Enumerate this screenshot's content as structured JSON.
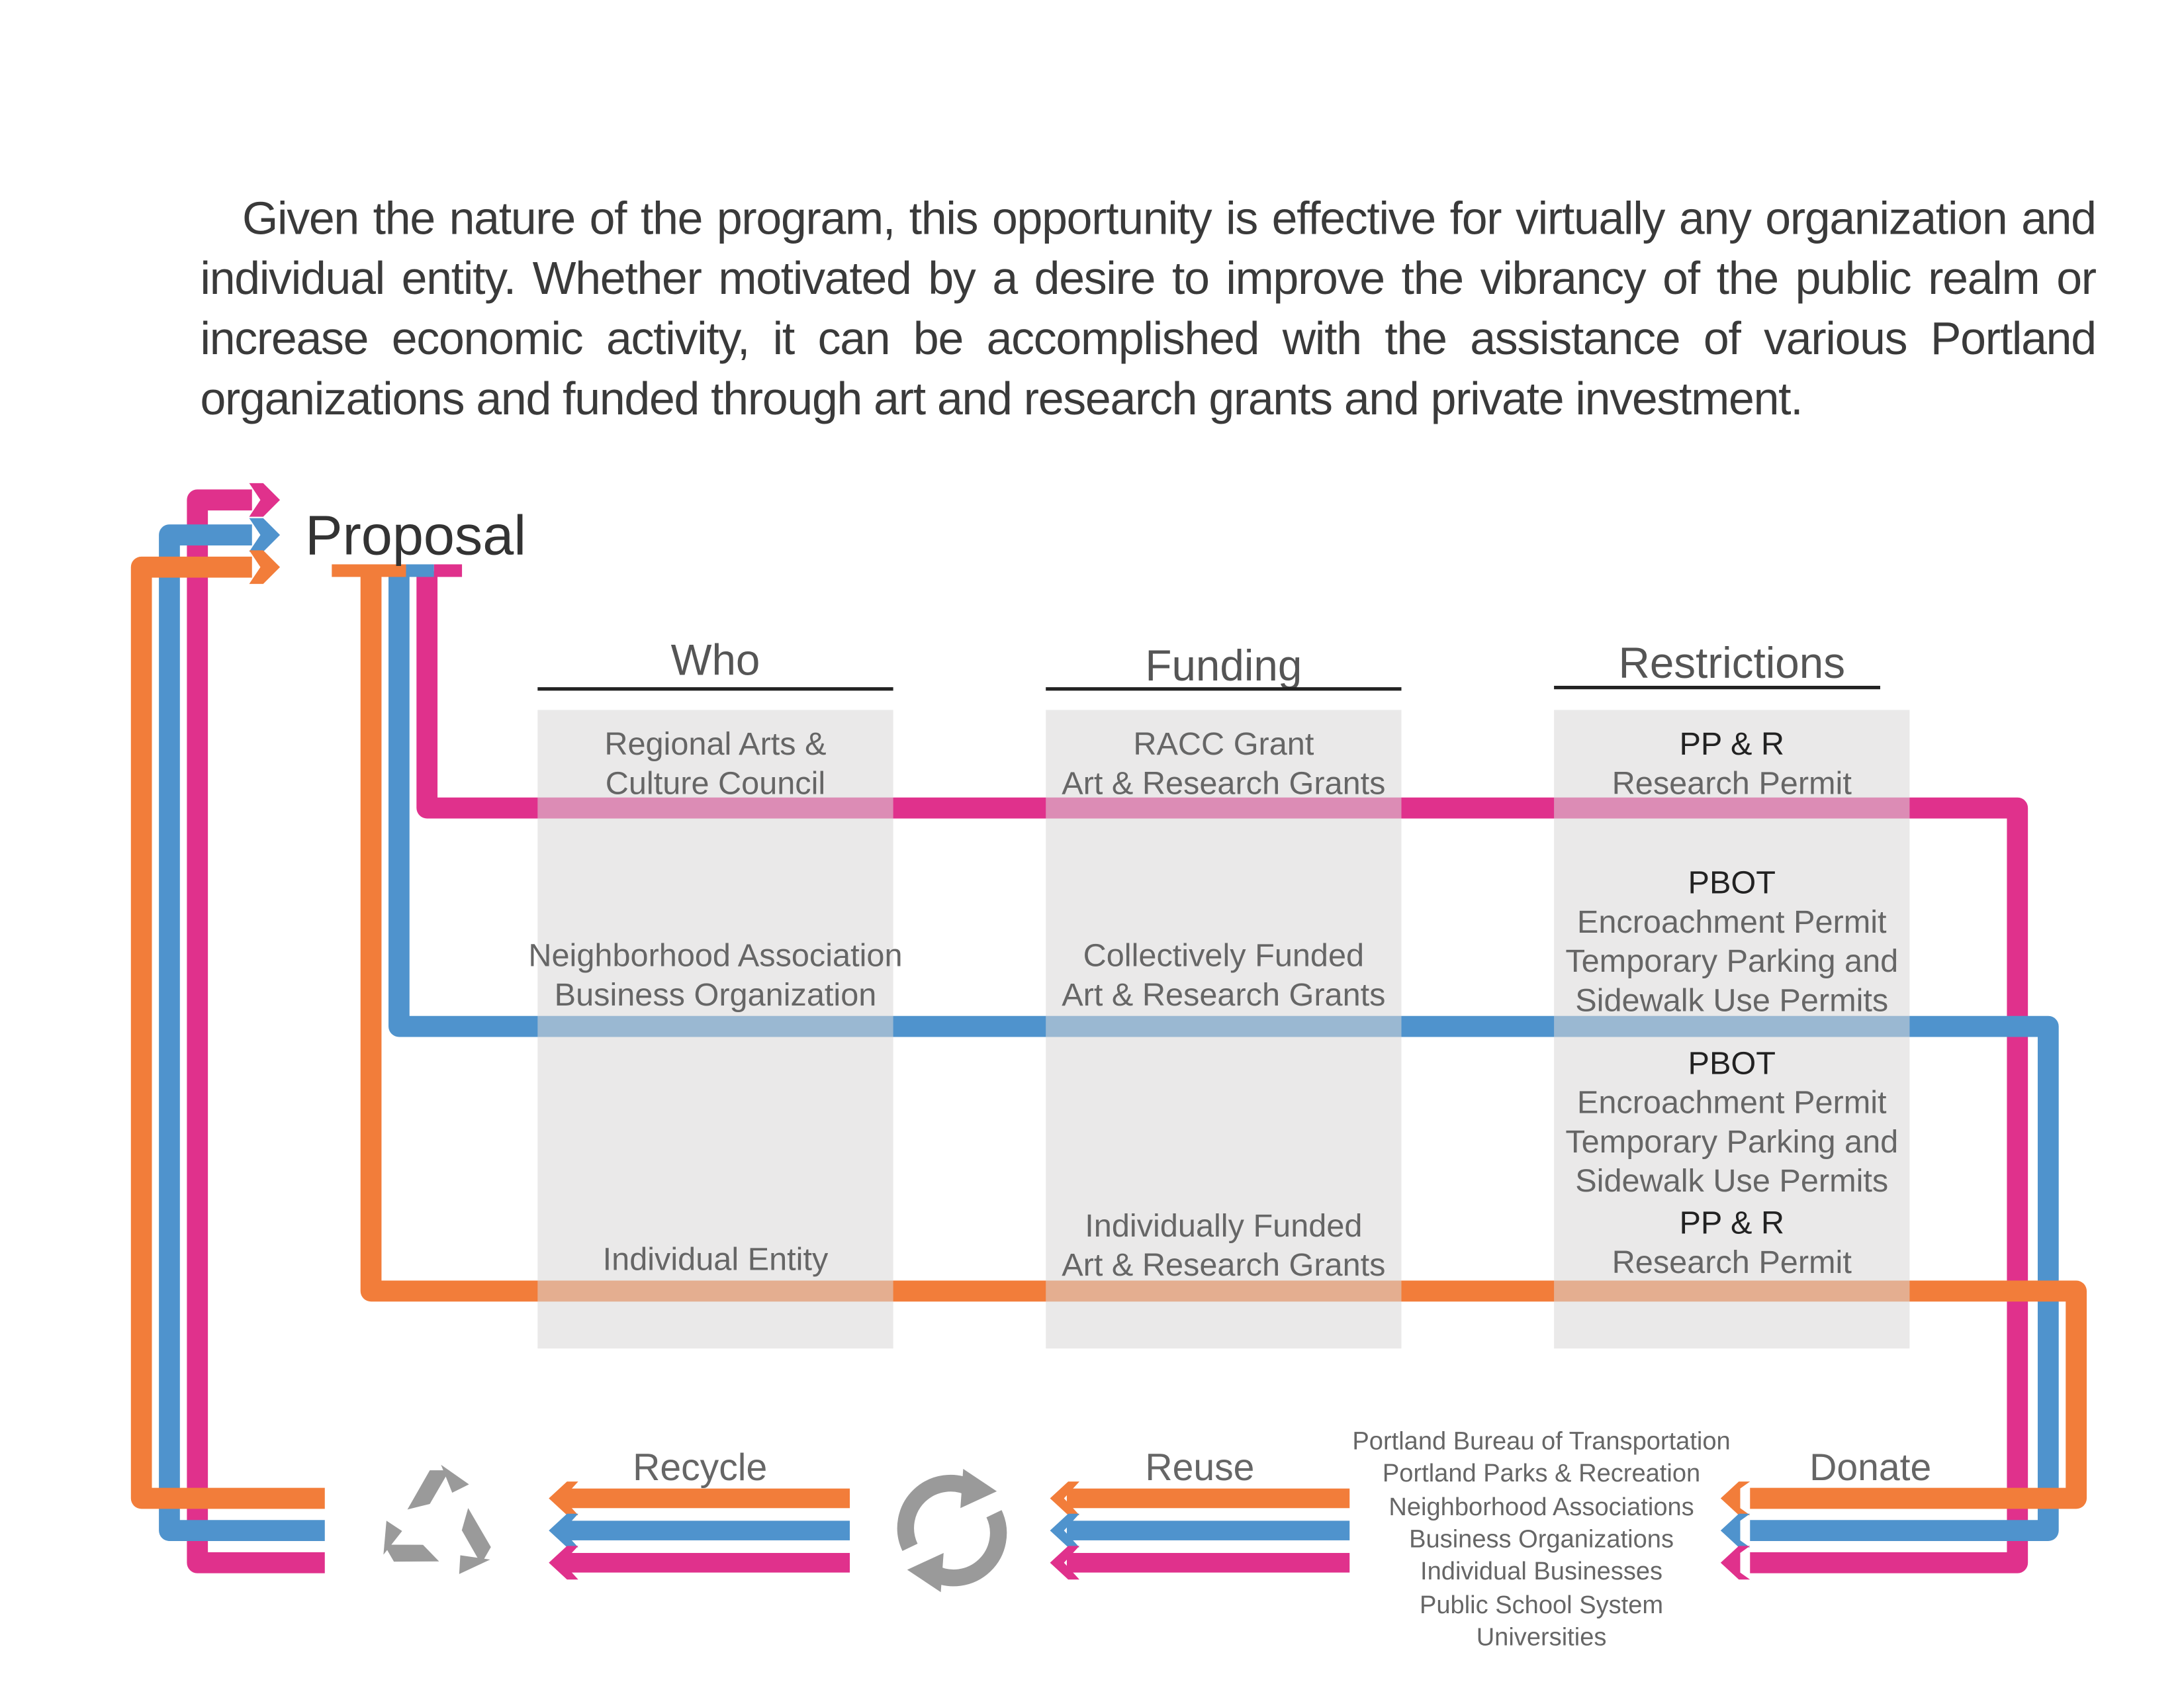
{
  "intro_text": "Given the nature of the program, this opportunity is effective for virtually any organization and individual entity.  Whether motivated by a desire to improve the vibrancy of the public realm or increase economic activity, it can be accomplished with the assistance of various Portland organizations and funded through art and research grants and private investment.",
  "proposal_label": "Proposal",
  "columns": {
    "who": {
      "title": "Who",
      "rows": [
        [
          "Regional Arts &",
          "Culture Council"
        ],
        [
          "Neighborhood Association",
          "Business Organization"
        ],
        [
          "Individual Entity"
        ]
      ]
    },
    "funding": {
      "title": "Funding",
      "rows": [
        [
          "RACC Grant",
          "Art & Research Grants"
        ],
        [
          "Collectively Funded",
          "Art & Research Grants"
        ],
        [
          "Individually Funded",
          "Art & Research Grants"
        ]
      ]
    },
    "restrictions": {
      "title": "Restrictions",
      "rows": [
        {
          "agency": "PP & R",
          "items": [
            "Research Permit"
          ]
        },
        {
          "agency": "PBOT",
          "items": [
            "Encroachment Permit",
            "Temporary Parking and",
            "Sidewalk Use Permits"
          ]
        },
        {
          "agency": "PBOT",
          "items": [
            "Encroachment Permit",
            "Temporary Parking and",
            "Sidewalk Use Permits"
          ]
        },
        {
          "agency": "PP & R",
          "items": [
            "Research Permit"
          ]
        }
      ]
    }
  },
  "cycle": {
    "recycle": "Recycle",
    "reuse": "Reuse",
    "donate": "Donate"
  },
  "organizations": [
    "Portland Bureau of Transportation",
    "Portland Parks & Recreation",
    "Neighborhood Associations",
    "Business Organizations",
    "Individual Businesses",
    "Public School System",
    "Universities"
  ],
  "colors": {
    "pink": "#e0318c",
    "blue": "#4f93cd",
    "orange": "#f27d3a",
    "panel": "#e4e3e3",
    "icon": "#9a9a9a"
  },
  "icons": [
    "recycle-icon",
    "circular-arrows-icon"
  ]
}
